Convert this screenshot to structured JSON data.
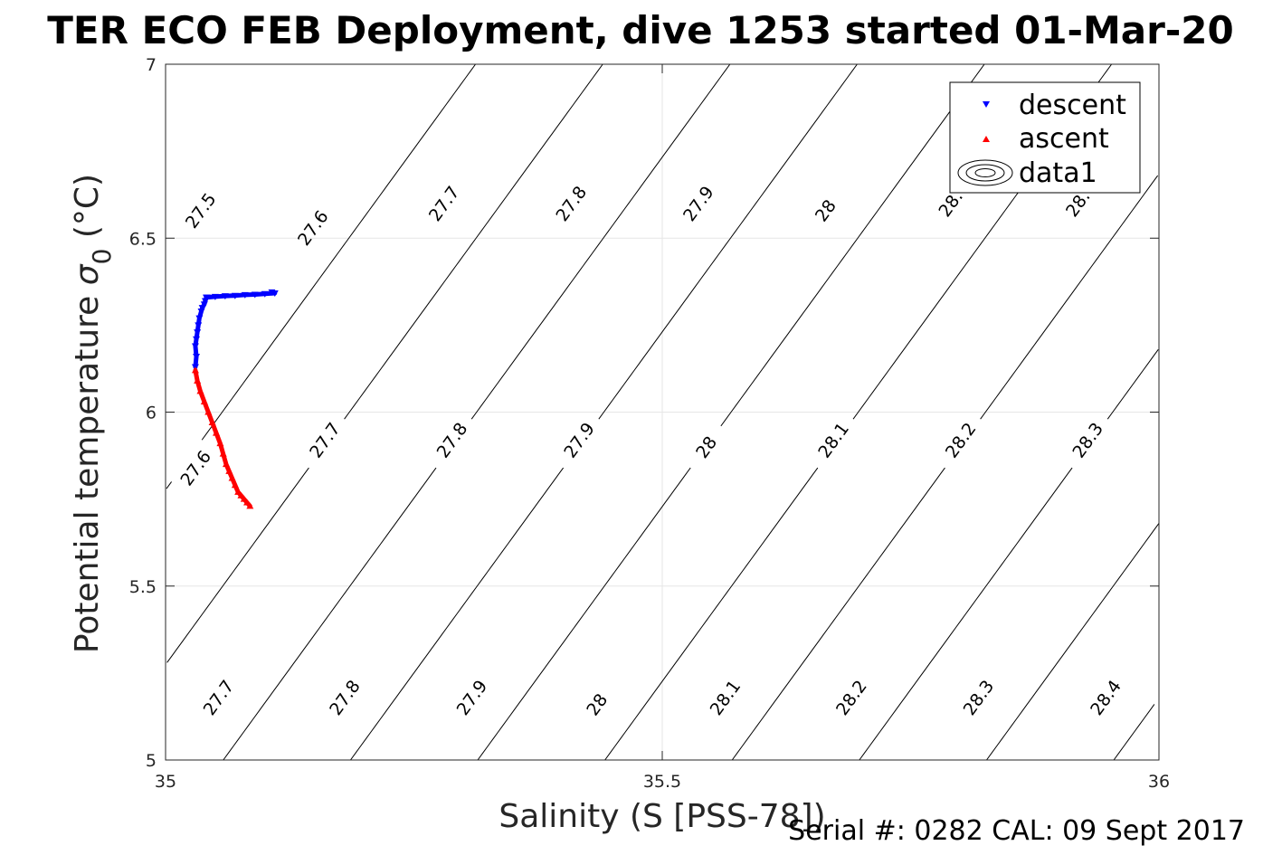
{
  "chart_data": {
    "type": "scatter",
    "title": "TER ECO FEB Deployment, dive 1253 started 01-Mar-20",
    "xlabel": "Salinity (S [PSS-78])",
    "ylabel_main": "Potential temperature ",
    "ylabel_sigma": "σ",
    "ylabel_sub": "0",
    "ylabel_unit": " (°C)",
    "footer": "Serial #: 0282  CAL: 09 Sept 2017",
    "xlim": [
      35,
      36
    ],
    "ylim": [
      5,
      7
    ],
    "grid": true,
    "legend_position": "top-right",
    "x_ticks": [
      {
        "value": 35,
        "label": "35"
      },
      {
        "value": 35.5,
        "label": "35.5"
      },
      {
        "value": 36,
        "label": "36"
      }
    ],
    "y_ticks": [
      {
        "value": 5,
        "label": "5"
      },
      {
        "value": 5.5,
        "label": "5.5"
      },
      {
        "value": 6,
        "label": "6"
      },
      {
        "value": 6.5,
        "label": "6.5"
      },
      {
        "value": 7,
        "label": "7"
      }
    ],
    "isopycnals": {
      "name": "data1",
      "levels": [
        27.5,
        27.6,
        27.7,
        27.8,
        27.9,
        28,
        28.1,
        28.2,
        28.3,
        28.4
      ],
      "labels": [
        {
          "text": "27.5",
          "x": 35.035,
          "y": 6.58
        },
        {
          "text": "27.6",
          "x": 35.148,
          "y": 6.53
        },
        {
          "text": "27.7",
          "x": 35.28,
          "y": 6.6
        },
        {
          "text": "27.8",
          "x": 35.408,
          "y": 6.6
        },
        {
          "text": "27.9",
          "x": 35.536,
          "y": 6.6
        },
        {
          "text": "28",
          "x": 35.664,
          "y": 6.58
        },
        {
          "text": "28.",
          "x": 35.79,
          "y": 6.6
        },
        {
          "text": "28.",
          "x": 35.918,
          "y": 6.6
        },
        {
          "text": "27.6",
          "x": 35.03,
          "y": 5.84
        },
        {
          "text": "27.7",
          "x": 35.16,
          "y": 5.92
        },
        {
          "text": "27.8",
          "x": 35.288,
          "y": 5.92
        },
        {
          "text": "27.9",
          "x": 35.416,
          "y": 5.92
        },
        {
          "text": "28",
          "x": 35.544,
          "y": 5.9
        },
        {
          "text": "28.1",
          "x": 35.672,
          "y": 5.92
        },
        {
          "text": "28.2",
          "x": 35.8,
          "y": 5.92
        },
        {
          "text": "28.3",
          "x": 35.928,
          "y": 5.92
        },
        {
          "text": "27.7",
          "x": 35.053,
          "y": 5.18
        },
        {
          "text": "27.8",
          "x": 35.18,
          "y": 5.18
        },
        {
          "text": "27.9",
          "x": 35.308,
          "y": 5.18
        },
        {
          "text": "28",
          "x": 35.434,
          "y": 5.16
        },
        {
          "text": "28.1",
          "x": 35.563,
          "y": 5.18
        },
        {
          "text": "28.2",
          "x": 35.69,
          "y": 5.18
        },
        {
          "text": "28.3",
          "x": 35.818,
          "y": 5.18
        },
        {
          "text": "28.4",
          "x": 35.946,
          "y": 5.18
        }
      ]
    },
    "series": [
      {
        "name": "descent",
        "color": "#0000ff",
        "marker": "triangle-down",
        "x": [
          35.03,
          35.031,
          35.03,
          35.031,
          35.032,
          35.033,
          35.034,
          35.036,
          35.037,
          35.039,
          35.04,
          35.041,
          35.042,
          35.05,
          35.06,
          35.07,
          35.08,
          35.09,
          35.1,
          35.11,
          35.107
        ],
        "y": [
          6.13,
          6.16,
          6.19,
          6.21,
          6.23,
          6.25,
          6.27,
          6.29,
          6.3,
          6.31,
          6.32,
          6.33,
          6.33,
          6.332,
          6.334,
          6.335,
          6.337,
          6.338,
          6.34,
          6.342,
          6.345
        ]
      },
      {
        "name": "ascent",
        "color": "#ff0000",
        "marker": "triangle-up",
        "x": [
          35.03,
          35.032,
          35.035,
          35.039,
          35.043,
          35.047,
          35.051,
          35.055,
          35.058,
          35.061,
          35.064,
          35.067,
          35.07,
          35.073,
          35.076,
          35.079,
          35.082,
          35.085
        ],
        "y": [
          6.12,
          6.09,
          6.06,
          6.03,
          6.0,
          5.97,
          5.94,
          5.91,
          5.88,
          5.85,
          5.83,
          5.81,
          5.79,
          5.77,
          5.76,
          5.75,
          5.74,
          5.73
        ]
      }
    ]
  }
}
